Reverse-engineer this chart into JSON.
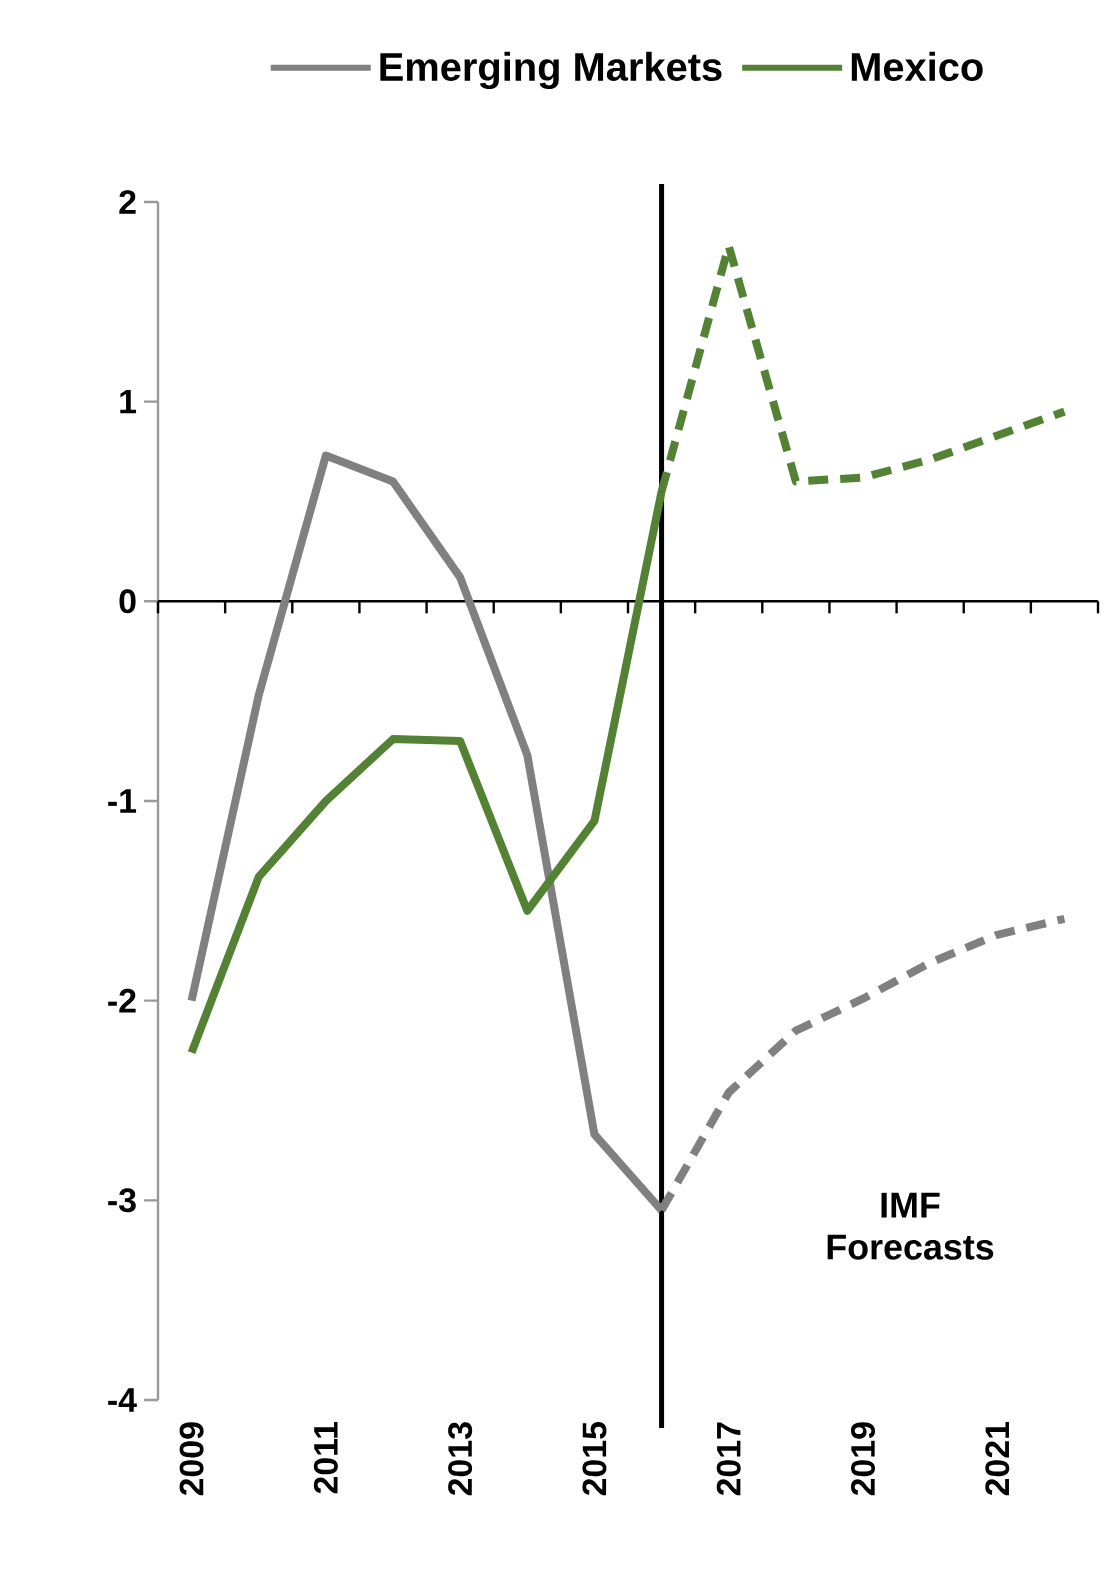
{
  "chart_data": {
    "type": "line",
    "series": [
      {
        "name": "Emerging Markets",
        "color": "#808080",
        "line_style": "solid",
        "x": [
          2009,
          2010,
          2011,
          2012,
          2013,
          2014,
          2015,
          2016
        ],
        "values": [
          -2.0,
          -0.47,
          0.73,
          0.6,
          0.12,
          -0.77,
          -2.67,
          -3.05
        ]
      },
      {
        "name": "Mexico",
        "color": "#548235",
        "line_style": "solid",
        "x": [
          2009,
          2010,
          2011,
          2012,
          2013,
          2014,
          2015,
          2016
        ],
        "values": [
          -2.26,
          -1.38,
          -1.0,
          -0.69,
          -0.7,
          -1.55,
          -1.1,
          0.55
        ]
      },
      {
        "color": "#808080",
        "line_style": "dashed",
        "x": [
          2016,
          2017,
          2018,
          2019,
          2020,
          2021,
          2022
        ],
        "values": [
          -3.05,
          -2.46,
          -2.15,
          -1.99,
          -1.81,
          -1.67,
          -1.59
        ]
      },
      {
        "color": "#548235",
        "line_style": "dashed",
        "x": [
          2016,
          2017,
          2018,
          2019,
          2020,
          2021,
          2022
        ],
        "values": [
          0.55,
          1.78,
          0.6,
          0.62,
          0.71,
          0.83,
          0.95
        ]
      }
    ],
    "xlim": [
      2008.5,
      2022.5
    ],
    "xticks": [
      2009,
      2011,
      2013,
      2015,
      2017,
      2019,
      2021,
      {
        "value": 2008.5,
        "label": null
      },
      {
        "value": 2009.5,
        "label": null
      },
      {
        "value": 2010.5,
        "label": null
      },
      {
        "value": 2011.5,
        "label": null
      },
      {
        "value": 2012.5,
        "label": null
      },
      {
        "value": 2013.5,
        "label": null
      },
      {
        "value": 2014.5,
        "label": null
      },
      {
        "value": 2015.5,
        "label": null
      },
      {
        "value": 2016.5,
        "label": null
      },
      {
        "value": 2017.5,
        "label": null
      },
      {
        "value": 2018.5,
        "label": null
      },
      {
        "value": 2019.5,
        "label": null
      },
      {
        "value": 2020.5,
        "label": null
      },
      {
        "value": 2021.5,
        "label": null
      },
      {
        "value": 2022.5,
        "label": null
      }
    ],
    "ylim": [
      -4,
      2
    ],
    "yticks": [
      -4,
      -3,
      -2,
      -1,
      0,
      1,
      2
    ],
    "ref_lines": [
      {
        "axis": "x",
        "value": 2016,
        "color": "#000000"
      }
    ],
    "annotations": [
      "IMF Forecasts"
    ],
    "legend": "top",
    "marker": "none"
  }
}
